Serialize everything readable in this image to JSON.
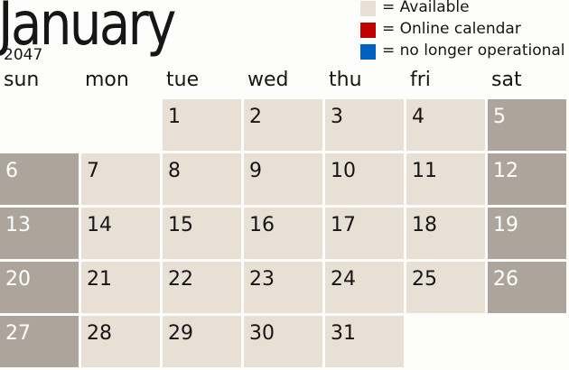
{
  "month": "January",
  "year": "2047",
  "legend": [
    {
      "color": "#e8e0d5",
      "label": "= Available"
    },
    {
      "color": "#c00000",
      "label": "= Online calendar"
    },
    {
      "color": "#0060c0",
      "label": "= no longer operational"
    }
  ],
  "days": [
    "sun",
    "mon",
    "tue",
    "wed",
    "thu",
    "fri",
    "sat"
  ],
  "weeks": [
    [
      "",
      "",
      "1",
      "2",
      "3",
      "4",
      "5"
    ],
    [
      "6",
      "7",
      "8",
      "9",
      "10",
      "11",
      "12"
    ],
    [
      "13",
      "14",
      "15",
      "16",
      "17",
      "18",
      "19"
    ],
    [
      "20",
      "21",
      "22",
      "23",
      "24",
      "25",
      "26"
    ],
    [
      "27",
      "28",
      "29",
      "30",
      "31",
      "",
      ""
    ]
  ],
  "colors": {
    "weekday": "#e8e0d5",
    "weekend": "#ada59c"
  }
}
